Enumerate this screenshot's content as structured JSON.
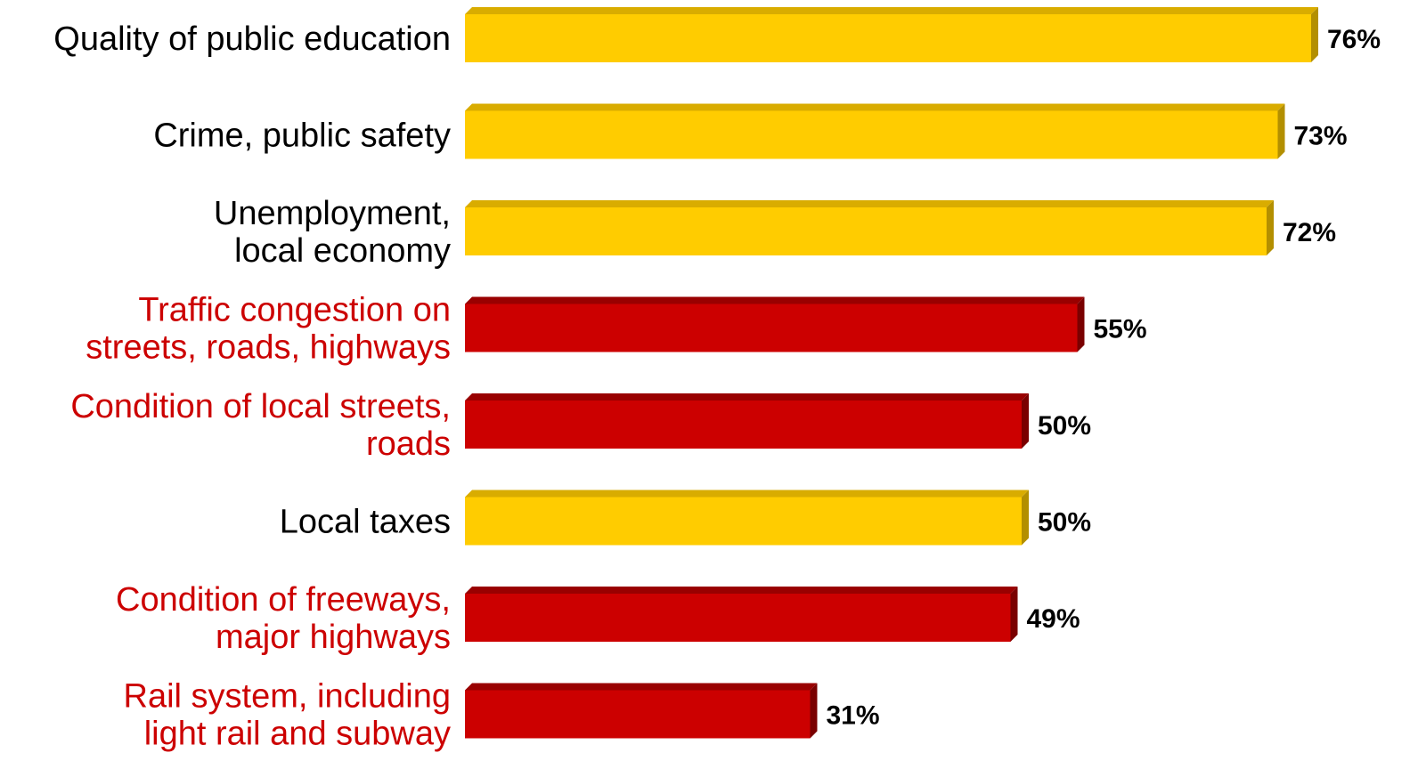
{
  "chart_data": {
    "type": "bar",
    "orientation": "horizontal",
    "categories": [
      [
        "Quality of public education"
      ],
      [
        "Crime, public safety"
      ],
      [
        "Unemployment,",
        "local economy"
      ],
      [
        "Traffic congestion on",
        "streets, roads, highways"
      ],
      [
        "Condition of local streets,",
        "roads"
      ],
      [
        "Local taxes"
      ],
      [
        "Condition of freeways,",
        "major highways"
      ],
      [
        "Rail system, including",
        "light rail and subway"
      ]
    ],
    "values": [
      76,
      73,
      72,
      55,
      50,
      50,
      49,
      31
    ],
    "value_labels": [
      "76%",
      "73%",
      "72%",
      "55%",
      "50%",
      "50%",
      "49%",
      "31%"
    ],
    "groups": [
      "yellow",
      "yellow",
      "yellow",
      "red",
      "red",
      "yellow",
      "red",
      "red"
    ],
    "title": "",
    "xlabel": "",
    "ylabel": "",
    "xlim": [
      0,
      76
    ],
    "grid": false,
    "legend": "none",
    "colors": {
      "yellow": {
        "front": "#FFCC00",
        "top": "#D9AC00",
        "side": "#B38F00",
        "label": "#000000"
      },
      "red": {
        "front": "#CC0000",
        "top": "#990000",
        "side": "#7A0000",
        "label": "#CC0000"
      }
    }
  }
}
